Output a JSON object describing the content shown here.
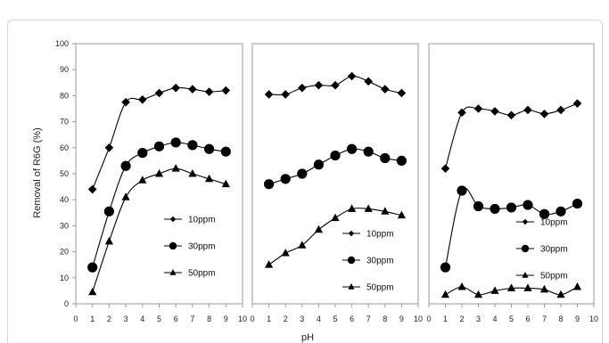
{
  "chart_data": [
    {
      "type": "line",
      "line_style": "smooth",
      "ylabel": "Removal of R6G (%)",
      "x": [
        1,
        2,
        3,
        4,
        5,
        6,
        7,
        8,
        9
      ],
      "xlim": [
        0,
        10
      ],
      "ylim": [
        0,
        100
      ],
      "xticks": [
        0,
        1,
        2,
        3,
        4,
        5,
        6,
        7,
        8,
        9,
        10
      ],
      "yticks": [
        0,
        10,
        20,
        30,
        40,
        50,
        60,
        70,
        80,
        90,
        100
      ],
      "grid": false,
      "legend": "lower-right",
      "series": [
        {
          "name": "10ppm",
          "marker": "diamond",
          "color": "#000000",
          "values": [
            44,
            60,
            77.5,
            78.5,
            81,
            83,
            82.5,
            81.5,
            82
          ]
        },
        {
          "name": "30ppm",
          "marker": "circle",
          "color": "#000000",
          "values": [
            14,
            35.5,
            53,
            58,
            60.5,
            62,
            61,
            59.5,
            58.5
          ]
        },
        {
          "name": "50ppm",
          "marker": "triangle",
          "color": "#000000",
          "values": [
            4.5,
            24,
            41,
            47.5,
            50,
            52,
            50,
            48,
            46
          ]
        }
      ]
    },
    {
      "type": "line",
      "line_style": "smooth",
      "xlabel": "pH",
      "x": [
        1,
        2,
        3,
        4,
        5,
        6,
        7,
        8,
        9
      ],
      "xlim": [
        0,
        10
      ],
      "ylim": [
        0,
        100
      ],
      "xticks": [
        0,
        1,
        2,
        3,
        4,
        5,
        6,
        7,
        8,
        9,
        10
      ],
      "grid": false,
      "legend": "lower-right",
      "series": [
        {
          "name": "10ppm",
          "marker": "diamond",
          "color": "#000000",
          "values": [
            80.5,
            80.5,
            83,
            84,
            84,
            87.5,
            85.5,
            82.5,
            81
          ]
        },
        {
          "name": "30ppm",
          "marker": "circle",
          "color": "#000000",
          "values": [
            46,
            48,
            50,
            53.5,
            57,
            59.5,
            58.5,
            56,
            55
          ]
        },
        {
          "name": "50ppm",
          "marker": "triangle",
          "color": "#000000",
          "values": [
            15,
            19.5,
            22.5,
            28.5,
            33,
            36.5,
            36.5,
            35.5,
            34
          ]
        }
      ]
    },
    {
      "type": "line",
      "line_style": "smooth",
      "x": [
        1,
        2,
        3,
        4,
        5,
        6,
        7,
        8,
        9
      ],
      "xlim": [
        0,
        10
      ],
      "ylim": [
        0,
        100
      ],
      "xticks": [
        0,
        1,
        2,
        3,
        4,
        5,
        6,
        7,
        8,
        9,
        10
      ],
      "grid": false,
      "legend": "lower-right",
      "series": [
        {
          "name": "10ppm",
          "marker": "diamond",
          "color": "#000000",
          "values": [
            52,
            73.5,
            75,
            74,
            72.5,
            74.5,
            73,
            74.5,
            77
          ]
        },
        {
          "name": "30ppm",
          "marker": "circle",
          "color": "#000000",
          "values": [
            14,
            43.5,
            37.5,
            36.5,
            37,
            38,
            34.5,
            35.5,
            38.5
          ]
        },
        {
          "name": "50ppm",
          "marker": "triangle",
          "color": "#000000",
          "values": [
            3.5,
            6.5,
            3.5,
            5,
            6,
            6,
            5.5,
            3.5,
            6.5
          ]
        }
      ]
    }
  ]
}
